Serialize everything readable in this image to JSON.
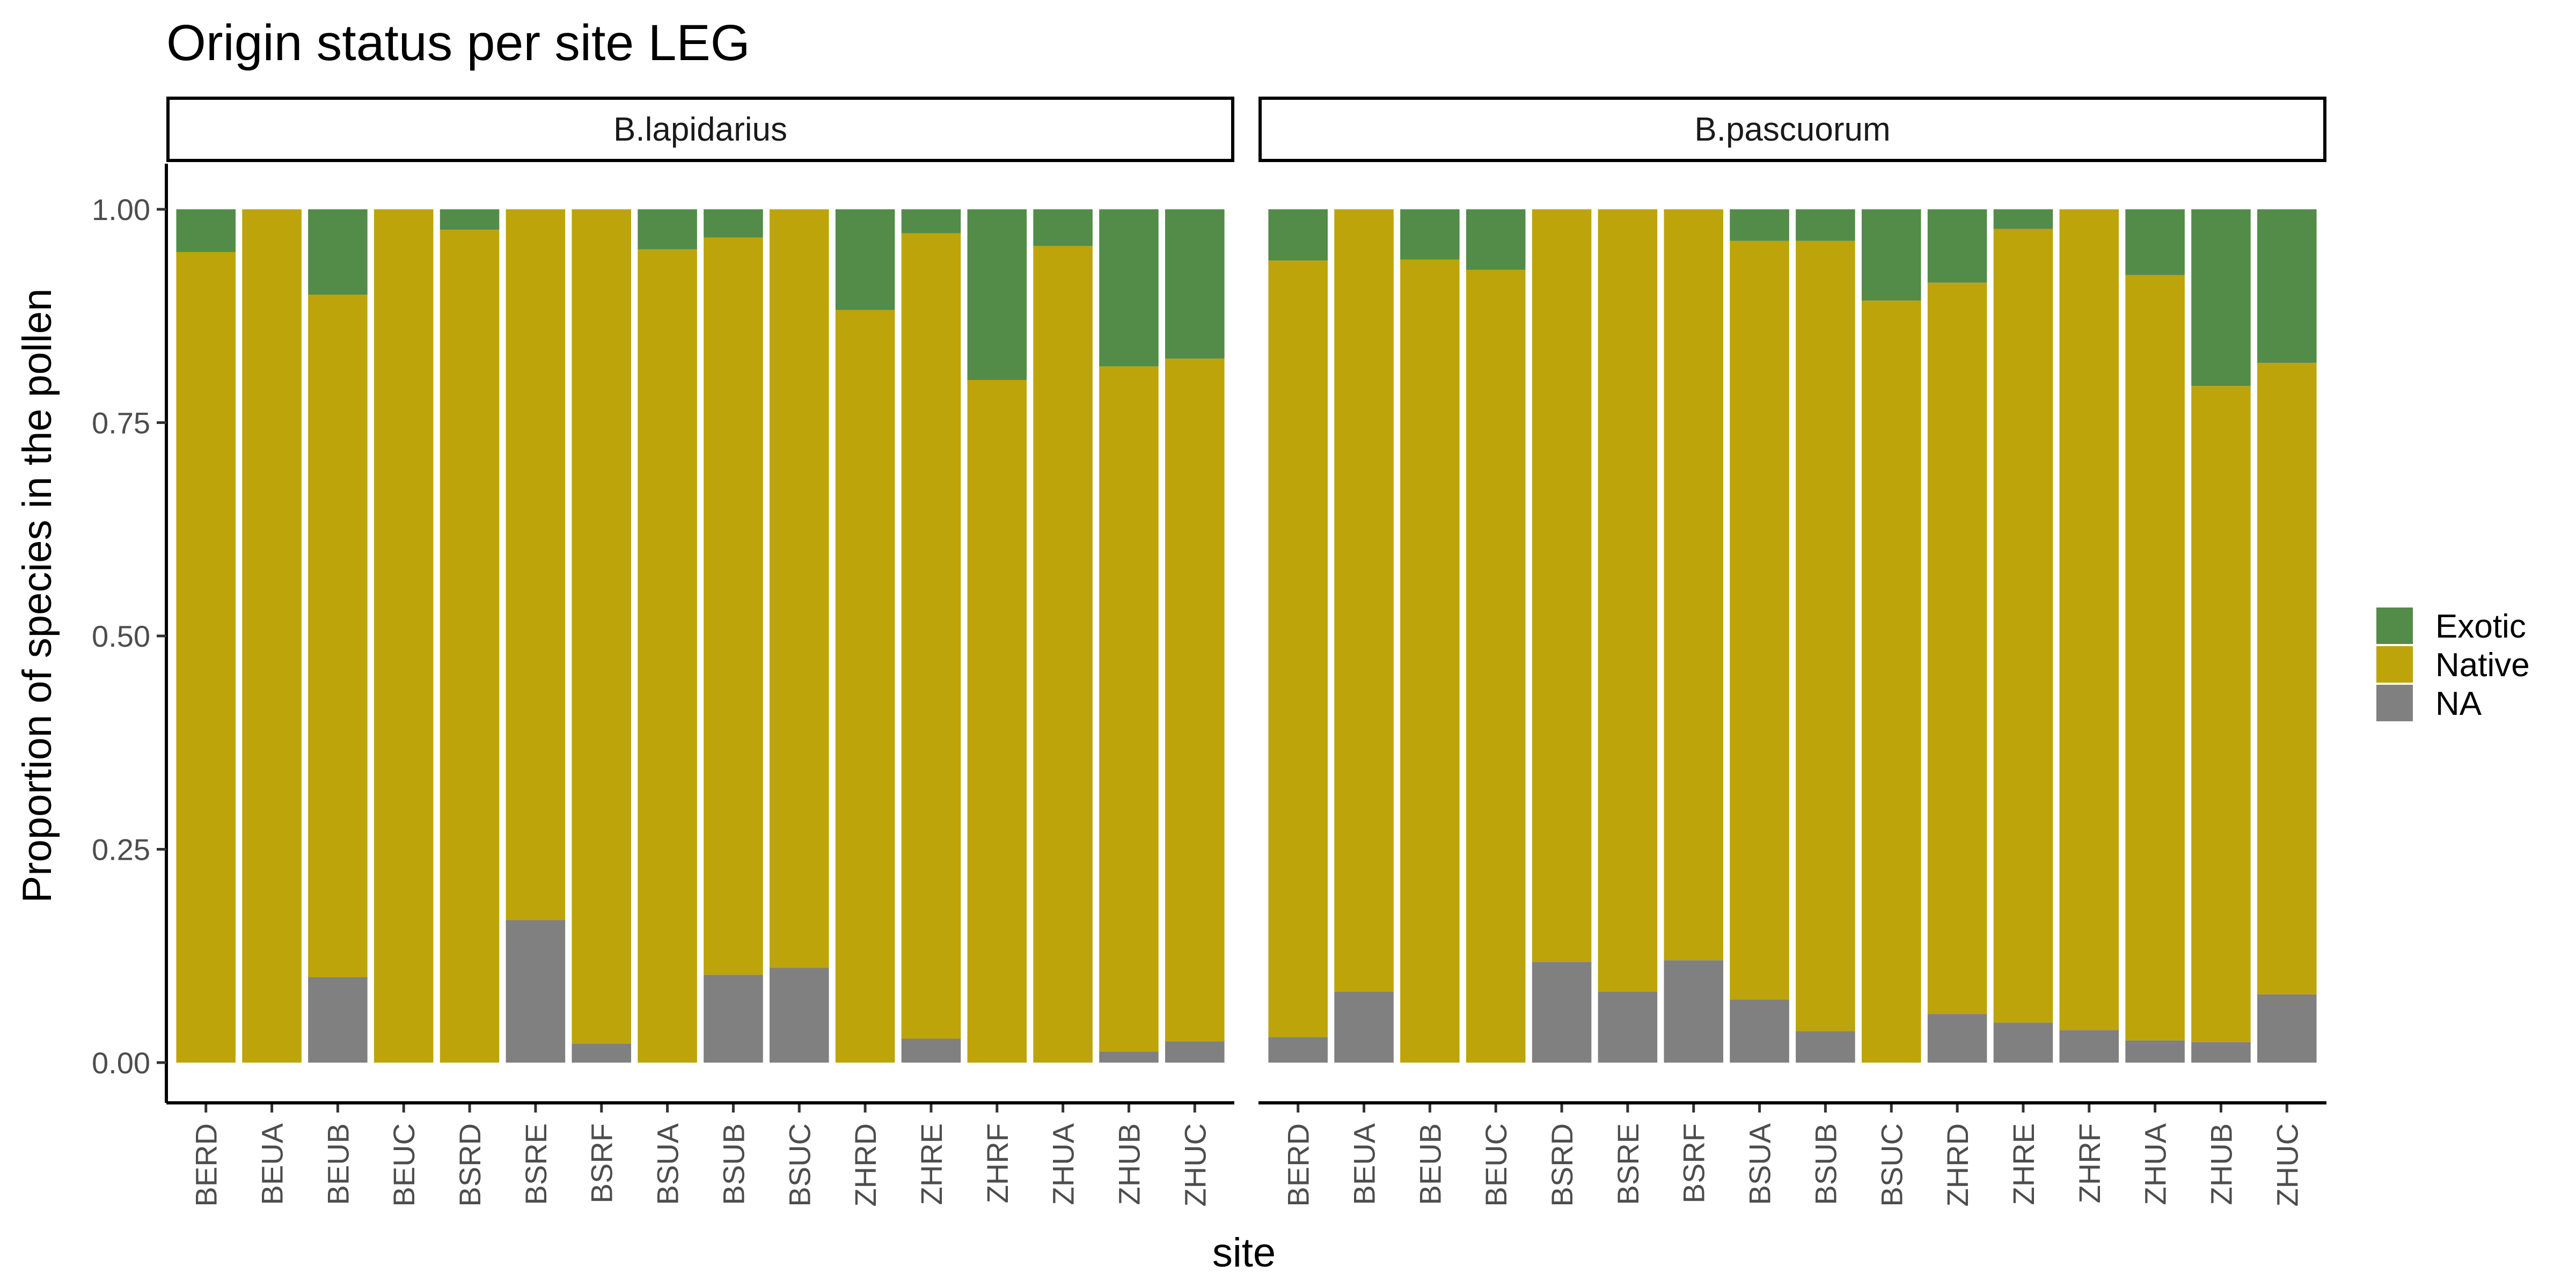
{
  "chart_data": {
    "type": "bar",
    "stacked": true,
    "title": "Origin status per site LEG",
    "xlabel": "site",
    "ylabel": "Proportion of species in the pollen",
    "ylim": [
      0,
      1
    ],
    "yticks": [
      "0.00",
      "0.25",
      "0.50",
      "0.75",
      "1.00"
    ],
    "legend": {
      "position": "right",
      "entries": [
        {
          "name": "Exotic",
          "color": "#528c48"
        },
        {
          "name": "Native",
          "color": "#bda40a"
        },
        {
          "name": "NA",
          "color": "#808080"
        }
      ]
    },
    "categories": [
      "BERD",
      "BEUA",
      "BEUB",
      "BEUC",
      "BSRD",
      "BSRE",
      "BSRF",
      "BSUA",
      "BSUB",
      "BSUC",
      "ZHRD",
      "ZHRE",
      "ZHRF",
      "ZHUA",
      "ZHUB",
      "ZHUC"
    ],
    "panels": [
      {
        "label": "B.lapidarius",
        "series": [
          {
            "name": "NA",
            "values": [
              0,
              0,
              0.1,
              0,
              0,
              0.167,
              0.022,
              0,
              0.103,
              0.111,
              0,
              0.028,
              0,
              0,
              0.013,
              0.025
            ]
          },
          {
            "name": "Native",
            "values": [
              0.95,
              1,
              0.8,
              1,
              0.976,
              0.833,
              0.978,
              0.953,
              0.864,
              0.889,
              0.882,
              0.944,
              0.8,
              0.957,
              0.803,
              0.8
            ]
          },
          {
            "name": "Exotic",
            "values": [
              0.05,
              0,
              0.1,
              0,
              0.024,
              0,
              0,
              0.047,
              0.033,
              0,
              0.118,
              0.028,
              0.2,
              0.043,
              0.184,
              0.175
            ]
          }
        ]
      },
      {
        "label": "B.pascuorum",
        "series": [
          {
            "name": "NA",
            "values": [
              0.03,
              0.083,
              0,
              0,
              0.118,
              0.083,
              0.12,
              0.074,
              0.037,
              0,
              0.057,
              0.047,
              0.038,
              0.026,
              0.024,
              0.08
            ]
          },
          {
            "name": "Native",
            "values": [
              0.91,
              0.917,
              0.941,
              0.929,
              0.882,
              0.917,
              0.88,
              0.889,
              0.926,
              0.893,
              0.857,
              0.93,
              0.962,
              0.897,
              0.769,
              0.74
            ]
          },
          {
            "name": "Exotic",
            "values": [
              0.06,
              0,
              0.059,
              0.071,
              0,
              0,
              0,
              0.037,
              0.037,
              0.107,
              0.086,
              0.023,
              0,
              0.077,
              0.207,
              0.18
            ]
          }
        ]
      }
    ]
  }
}
